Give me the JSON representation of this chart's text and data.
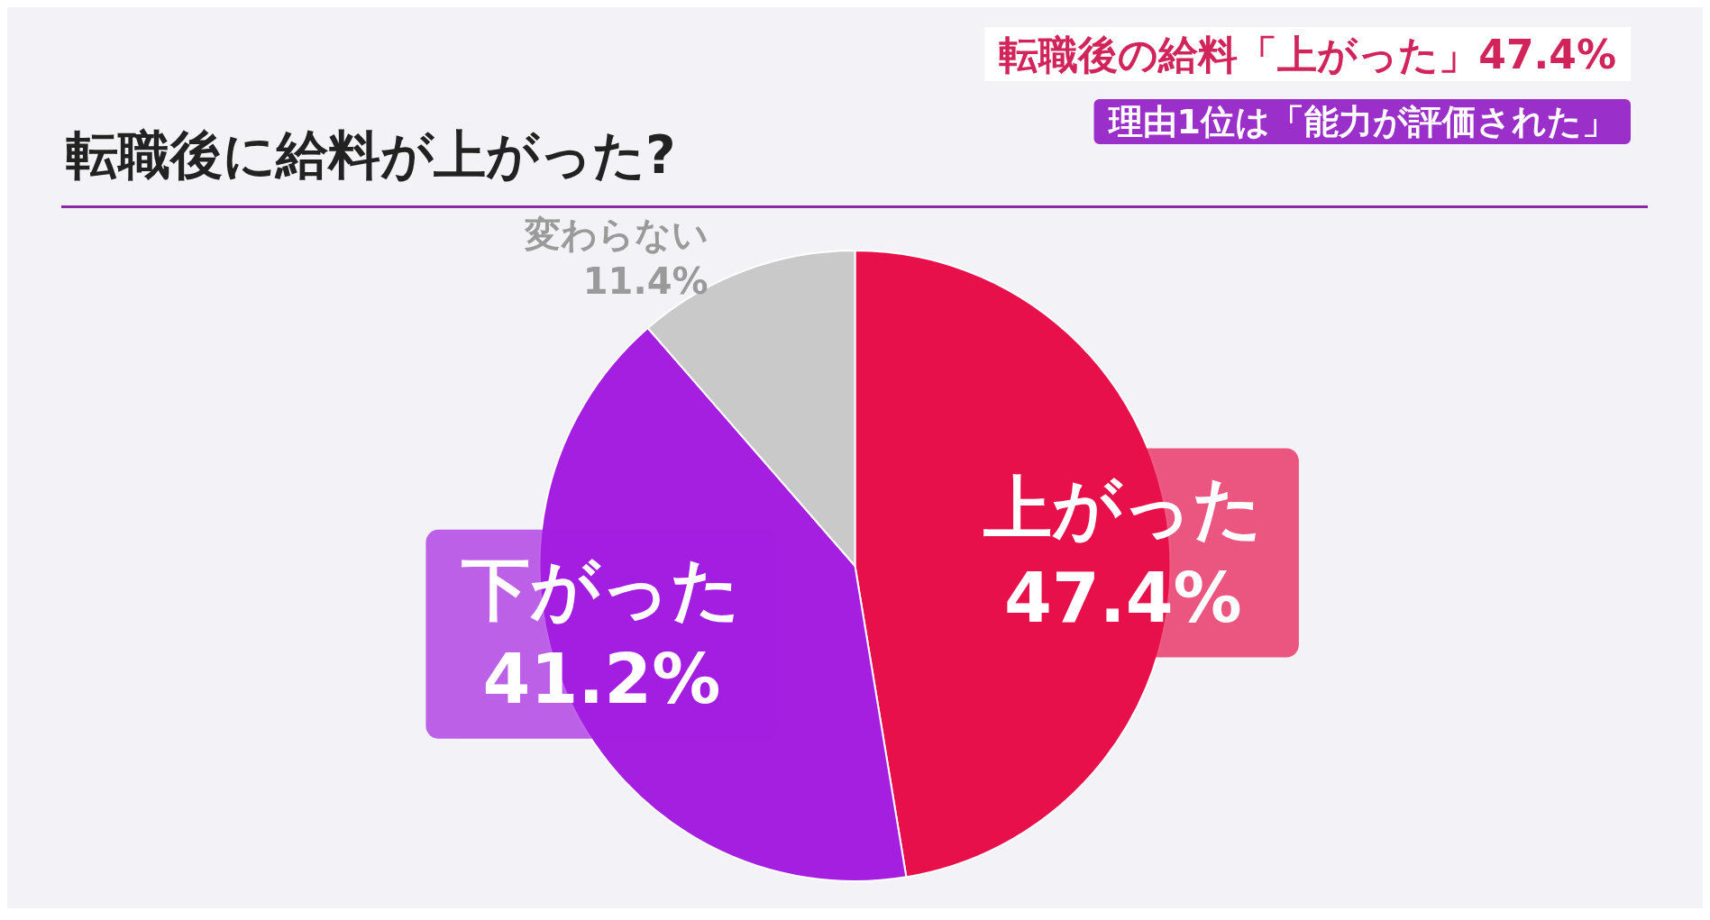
{
  "chart_data": {
    "type": "pie",
    "title": "転職後に給料が上がった?",
    "subtitle": "転職後の給料「上がった」47.4%",
    "annotations": [
      "理由1位は「能力が評価された」"
    ],
    "categories": [
      "上がった",
      "下がった",
      "変わらない"
    ],
    "values": [
      47.4,
      41.2,
      11.4
    ],
    "value_labels": [
      "47.4%",
      "41.2%",
      "11.4%"
    ],
    "colors": [
      "#e8104a",
      "#a41fe0",
      "#c9c9c9"
    ],
    "legend": false
  }
}
